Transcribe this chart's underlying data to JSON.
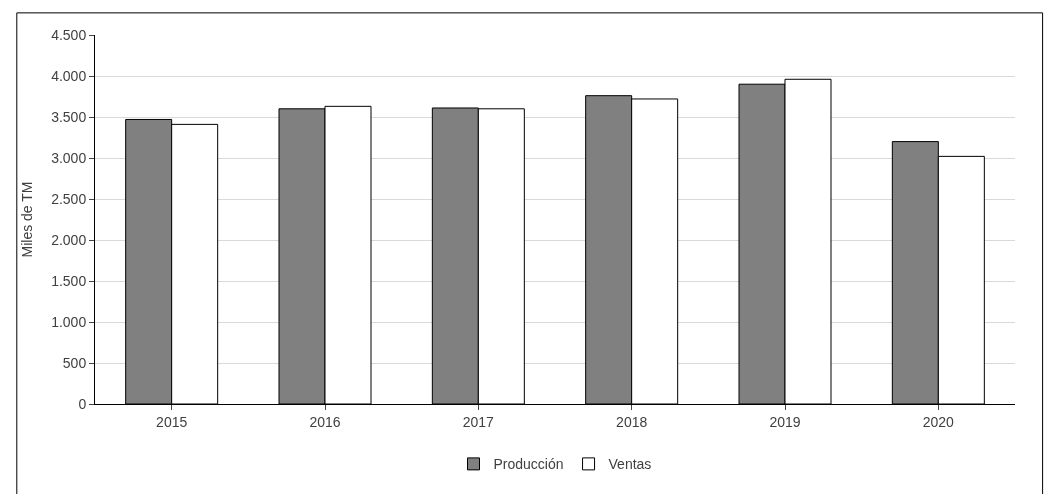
{
  "chart_data": {
    "type": "bar",
    "ylabel": "Miles de TM",
    "categories": [
      "2015",
      "2016",
      "2017",
      "2018",
      "2019",
      "2020"
    ],
    "series": [
      {
        "name": "Producción",
        "color": "#808080",
        "values": [
          3470,
          3600,
          3610,
          3760,
          3900,
          3200
        ]
      },
      {
        "name": "Ventas",
        "color": "#ffffff",
        "values": [
          3410,
          3630,
          3600,
          3720,
          3960,
          3020
        ]
      }
    ],
    "ylim": [
      0,
      4500
    ],
    "yticks": [
      {
        "value": 0,
        "label": "0"
      },
      {
        "value": 500,
        "label": "500"
      },
      {
        "value": 1000,
        "label": "1.000"
      },
      {
        "value": 1500,
        "label": "1.500"
      },
      {
        "value": 2000,
        "label": "2.000"
      },
      {
        "value": 2500,
        "label": "2.500"
      },
      {
        "value": 3000,
        "label": "3.000"
      },
      {
        "value": 3500,
        "label": "3.500"
      },
      {
        "value": 4000,
        "label": "4.000"
      },
      {
        "value": 4500,
        "label": "4.500"
      }
    ],
    "grid": "y",
    "legend": "bottom"
  }
}
